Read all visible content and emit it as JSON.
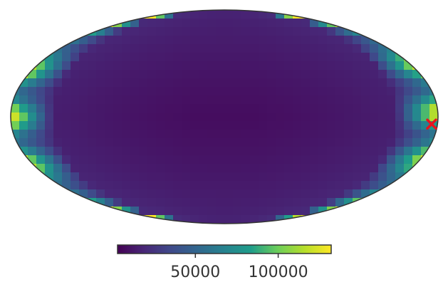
{
  "chart_data": {
    "type": "heatmap",
    "projection": "mollweide",
    "colormap": "viridis",
    "colormap_stops": [
      "#440154",
      "#482777",
      "#3f4a8a",
      "#31678e",
      "#26838f",
      "#1f9d8a",
      "#6cce5a",
      "#b6de2b",
      "#fee825"
    ],
    "value_range": [
      3000,
      132000
    ],
    "colorbar": {
      "ticks": [
        50000,
        100000
      ],
      "tick_labels": [
        "50000",
        "100000"
      ]
    },
    "marker": {
      "symbol": "x",
      "color": "#e8141e",
      "longitude_deg": -175,
      "latitude_deg": -5
    }
  }
}
